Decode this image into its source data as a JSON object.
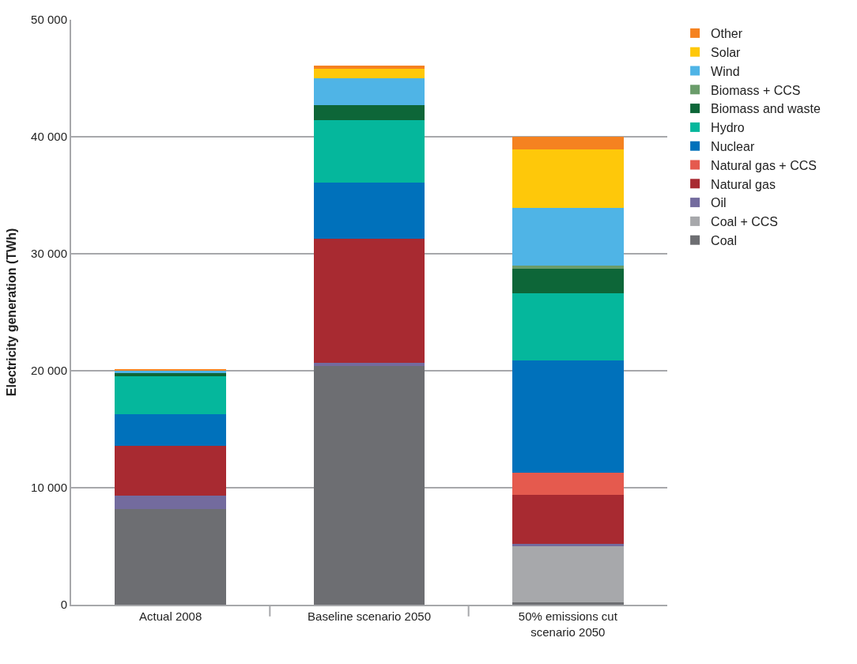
{
  "chart_data": {
    "type": "bar",
    "stacked": true,
    "ylabel": "Electricity generation (TWh)",
    "categories": [
      "Actual 2008",
      "Baseline scenario 2050",
      "50% emissions cut\nscenario 2050"
    ],
    "series": [
      {
        "name": "Coal",
        "color": "#6d6e72",
        "values": [
          8200,
          20400,
          200
        ]
      },
      {
        "name": "Coal + CCS",
        "color": "#a7a8ab",
        "values": [
          0,
          0,
          4800
        ]
      },
      {
        "name": "Oil",
        "color": "#736b9e",
        "values": [
          1100,
          300,
          200
        ]
      },
      {
        "name": "Natural gas",
        "color": "#a82a31",
        "values": [
          4300,
          10600,
          4200
        ]
      },
      {
        "name": "Natural gas + CCS",
        "color": "#e55a4e",
        "values": [
          0,
          0,
          1900
        ]
      },
      {
        "name": "Nuclear",
        "color": "#0071bb",
        "values": [
          2700,
          4800,
          9600
        ]
      },
      {
        "name": "Hydro",
        "color": "#05b79c",
        "values": [
          3200,
          5300,
          5700
        ]
      },
      {
        "name": "Biomass and waste",
        "color": "#0d6638",
        "values": [
          300,
          1300,
          2100
        ]
      },
      {
        "name": "Biomass + CCS",
        "color": "#6a9c6a",
        "values": [
          0,
          0,
          300
        ]
      },
      {
        "name": "Wind",
        "color": "#4fb4e6",
        "values": [
          200,
          2300,
          4900
        ]
      },
      {
        "name": "Solar",
        "color": "#fec80a",
        "values": [
          0,
          800,
          5000
        ]
      },
      {
        "name": "Other",
        "color": "#f58220",
        "values": [
          100,
          300,
          1100
        ]
      }
    ],
    "ylim": [
      0,
      50000
    ],
    "yticks": [
      {
        "value": 0,
        "label": "0"
      },
      {
        "value": 10000,
        "label": "10 000"
      },
      {
        "value": 20000,
        "label": "20 000"
      },
      {
        "value": 30000,
        "label": "30 000"
      },
      {
        "value": 40000,
        "label": "40 000"
      },
      {
        "value": 50000,
        "label": "50 000"
      }
    ],
    "grid": "y",
    "legend": "right",
    "tick_labels": "xy"
  }
}
